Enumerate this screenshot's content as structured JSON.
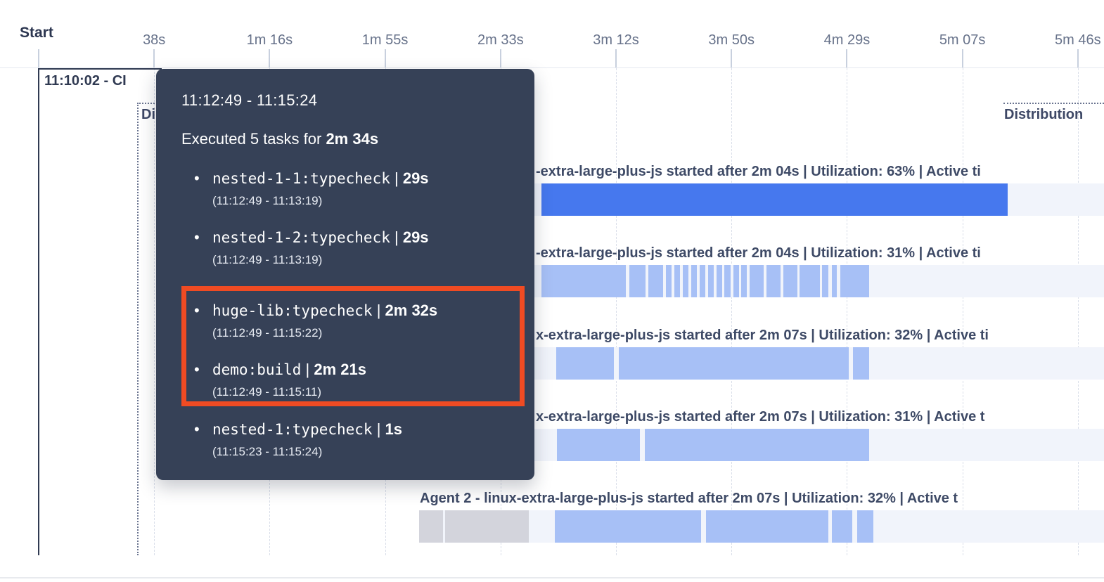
{
  "timeline": {
    "start_label": "Start",
    "build_label": "11:10:02 - CI",
    "annotation_left_label": "Di",
    "annotation_right_label": "Distribution"
  },
  "tooltip": {
    "time_range": "11:12:49 - 11:15:24",
    "summary_prefix": "Executed 5 tasks for ",
    "summary_duration": "2m 34s",
    "bullet": "•",
    "separator": " | ",
    "tasks": [
      {
        "name": "nested-1-1:typecheck",
        "duration": "29s",
        "range": "(11:12:49 - 11:13:19)",
        "highlighted": false
      },
      {
        "name": "nested-1-2:typecheck",
        "duration": "29s",
        "range": "(11:12:49 - 11:13:19)",
        "highlighted": false
      },
      {
        "name": "huge-lib:typecheck",
        "duration": "2m 32s",
        "range": "(11:12:49 - 11:15:22)",
        "highlighted": true
      },
      {
        "name": "demo:build",
        "duration": "2m 21s",
        "range": "(11:12:49 - 11:15:11)",
        "highlighted": true
      },
      {
        "name": "nested-1:typecheck",
        "duration": "1s",
        "range": "(11:15:23 - 11:15:24)",
        "highlighted": false
      }
    ],
    "highlight_color": "#F04B23",
    "background_color": "#364157"
  },
  "chart_data": {
    "type": "bar",
    "title": "CI build timeline - agent task distribution (Gantt)",
    "x_axis": {
      "unit": "seconds",
      "start_label": "Start",
      "ticks": [
        {
          "label": "38s",
          "s": 38.5
        },
        {
          "label": "1m 16s",
          "s": 77
        },
        {
          "label": "1m 55s",
          "s": 115.5
        },
        {
          "label": "2m 33s",
          "s": 154
        },
        {
          "label": "3m 12s",
          "s": 192.5
        },
        {
          "label": "3m 50s",
          "s": 231
        },
        {
          "label": "4m 29s",
          "s": 269.5
        },
        {
          "label": "5m 07s",
          "s": 308
        },
        {
          "label": "5m 46s",
          "s": 346.5
        }
      ],
      "range_s": [
        0,
        355
      ],
      "grid": "dashed-vertical"
    },
    "colors": {
      "solid": "#4678EE",
      "light": "#A7C0F6",
      "gray": "#D3D4DC",
      "track": "#F1F4FB"
    },
    "series": [
      {
        "label": "-extra-large-plus-js started after 2m 04s | Utilization: 63% | Active ti",
        "started_after_s": 124,
        "utilization": "63%",
        "segments": [
          {
            "kind": "solid",
            "start_s": 167.7,
            "end_s": 323.2
          }
        ]
      },
      {
        "label": "-extra-large-plus-js started after 2m 04s | Utilization: 31% | Active ti",
        "started_after_s": 124,
        "utilization": "31%",
        "segments": [
          {
            "kind": "light",
            "start_s": 167.7,
            "end_s": 195.8
          },
          {
            "kind": "light",
            "start_s": 196.9,
            "end_s": 202.3
          },
          {
            "kind": "light",
            "start_s": 203.3,
            "end_s": 208.2
          },
          {
            "kind": "light",
            "start_s": 209.1,
            "end_s": 211.0
          },
          {
            "kind": "light",
            "start_s": 211.9,
            "end_s": 213.8
          },
          {
            "kind": "light",
            "start_s": 214.7,
            "end_s": 216.6
          },
          {
            "kind": "light",
            "start_s": 217.5,
            "end_s": 219.4
          },
          {
            "kind": "light",
            "start_s": 220.4,
            "end_s": 222.2
          },
          {
            "kind": "light",
            "start_s": 223.2,
            "end_s": 225.0
          },
          {
            "kind": "light",
            "start_s": 226.0,
            "end_s": 227.9
          },
          {
            "kind": "light",
            "start_s": 228.6,
            "end_s": 230.7
          },
          {
            "kind": "light",
            "start_s": 231.6,
            "end_s": 233.5
          },
          {
            "kind": "light",
            "start_s": 234.2,
            "end_s": 236.1
          },
          {
            "kind": "light",
            "start_s": 237.0,
            "end_s": 241.7
          },
          {
            "kind": "light",
            "start_s": 242.6,
            "end_s": 247.3
          },
          {
            "kind": "light",
            "start_s": 248.2,
            "end_s": 252.9
          },
          {
            "kind": "light",
            "start_s": 253.8,
            "end_s": 260.4
          },
          {
            "kind": "light",
            "start_s": 261.3,
            "end_s": 263.4
          },
          {
            "kind": "light",
            "start_s": 264.4,
            "end_s": 266.2
          },
          {
            "kind": "light",
            "start_s": 267.2,
            "end_s": 276.8
          }
        ]
      },
      {
        "label": "x-extra-large-plus-js started after 2m 07s | Utilization: 32% | Active ti",
        "started_after_s": 127,
        "utilization": "32%",
        "segments": [
          {
            "kind": "light",
            "start_s": 172.6,
            "end_s": 191.8
          },
          {
            "kind": "light",
            "start_s": 193.4,
            "end_s": 270.0
          },
          {
            "kind": "light",
            "start_s": 271.4,
            "end_s": 276.8
          }
        ]
      },
      {
        "label": "x-extra-large-plus-js started after 2m 07s | Utilization: 31% | Active t",
        "started_after_s": 127,
        "utilization": "31%",
        "segments": [
          {
            "kind": "light",
            "start_s": 172.8,
            "end_s": 200.5
          },
          {
            "kind": "light",
            "start_s": 202.1,
            "end_s": 276.8
          }
        ]
      },
      {
        "label": "Agent 2 - linux-extra-large-plus-js started after 2m 07s | Utilization: 32% | Active t",
        "started_after_s": 127,
        "utilization": "32%",
        "segments": [
          {
            "kind": "gray",
            "start_s": 126.9,
            "end_s": 134.9
          },
          {
            "kind": "gray",
            "start_s": 135.6,
            "end_s": 163.5
          },
          {
            "kind": "light",
            "start_s": 172.1,
            "end_s": 220.8
          },
          {
            "kind": "light",
            "start_s": 222.5,
            "end_s": 263.4
          },
          {
            "kind": "light",
            "start_s": 264.4,
            "end_s": 271.2
          },
          {
            "kind": "light",
            "start_s": 273.0,
            "end_s": 278.4
          }
        ]
      }
    ]
  }
}
